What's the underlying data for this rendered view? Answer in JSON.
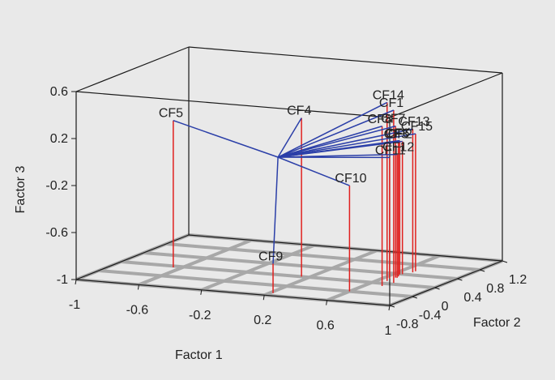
{
  "chart_data": {
    "type": "scatter",
    "subtype": "3d-loading-plot",
    "title": "",
    "xlabel": "Factor 1",
    "ylabel": "Factor 2",
    "zlabel": "Factor 3",
    "x_ticks": [
      "-1",
      "-0.6",
      "-0.2",
      "0.2",
      "0.6",
      "1"
    ],
    "y_ticks": [
      "-0.8",
      "-0.4",
      "0",
      "0.4",
      "0.8",
      "1.2"
    ],
    "z_ticks": [
      "0.6",
      "0.2",
      "-0.2",
      "-0.6",
      "-1"
    ],
    "xlim": [
      -1,
      1
    ],
    "ylim": [
      -0.8,
      1.2
    ],
    "zlim": [
      -1,
      0.6
    ],
    "grid": "floor",
    "colors": {
      "vector": "#2b3fa8",
      "drop_line": "#e0201e",
      "frame": "#1a1a1a",
      "floor_grid": "#a8a8a8",
      "background": "#e9e9e9"
    },
    "points": [
      {
        "label": "CF1",
        "x": 0.72,
        "y": 0.05,
        "z": 0.47
      },
      {
        "label": "CF2",
        "x": 0.65,
        "y": 0.4,
        "z": 0.13
      },
      {
        "label": "CF3",
        "x": 0.66,
        "y": 0.3,
        "z": 0.15
      },
      {
        "label": "CF4",
        "x": 0.15,
        "y": 0.0,
        "z": 0.35
      },
      {
        "label": "CF5",
        "x": -0.65,
        "y": -0.05,
        "z": 0.25
      },
      {
        "label": "CF6",
        "x": 0.64,
        "y": 0.38,
        "z": 0.14
      },
      {
        "label": "CF7",
        "x": 0.66,
        "y": 0.25,
        "z": 0.29
      },
      {
        "label": "CF8",
        "x": 0.7,
        "y": -0.1,
        "z": 0.36
      },
      {
        "label": "CF9",
        "x": 0.22,
        "y": -0.7,
        "z": -0.75
      },
      {
        "label": "CF10",
        "x": 0.6,
        "y": -0.4,
        "z": -0.1
      },
      {
        "label": "CF11",
        "x": 0.64,
        "y": 0.2,
        "z": 0.03
      },
      {
        "label": "CF12",
        "x": 0.67,
        "y": 0.25,
        "z": 0.05
      },
      {
        "label": "CF13",
        "x": 0.68,
        "y": 0.5,
        "z": 0.22
      },
      {
        "label": "CF14",
        "x": 0.66,
        "y": 0.1,
        "z": 0.52
      },
      {
        "label": "CF15",
        "x": 0.68,
        "y": 0.55,
        "z": 0.17
      }
    ]
  }
}
